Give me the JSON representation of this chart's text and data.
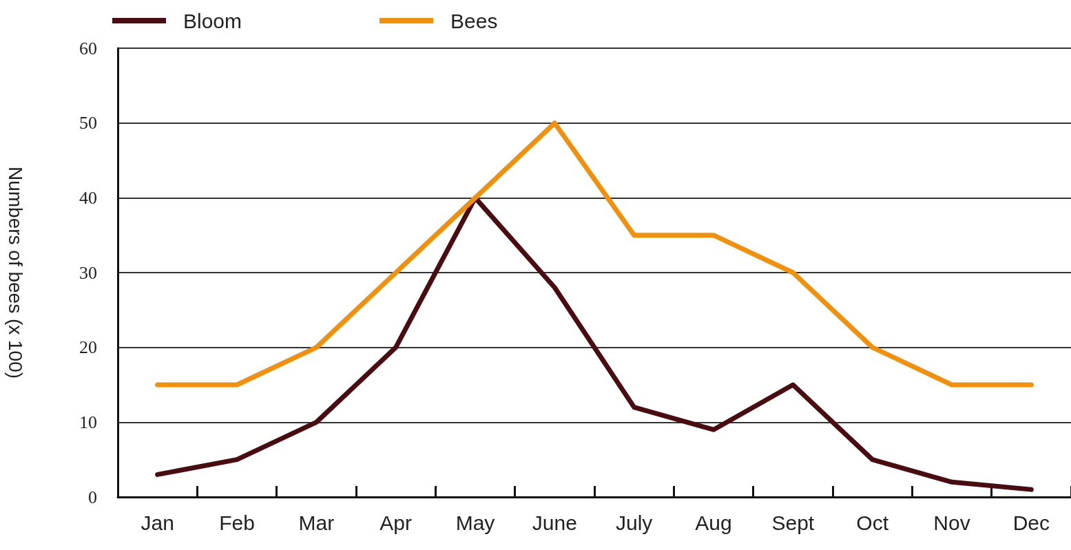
{
  "chart_data": {
    "type": "line",
    "ylabel": "Numbers of bees (x 100)",
    "categories": [
      "Jan",
      "Feb",
      "Mar",
      "Apr",
      "May",
      "June",
      "July",
      "Aug",
      "Sept",
      "Oct",
      "Nov",
      "Dec"
    ],
    "ylim": [
      0,
      60
    ],
    "yticks": [
      0,
      10,
      20,
      30,
      40,
      50,
      60
    ],
    "series": [
      {
        "name": "Bloom",
        "color": "#4a0c10",
        "values": [
          3,
          5,
          10,
          20,
          40,
          28,
          12,
          9,
          15,
          5,
          2,
          1
        ]
      },
      {
        "name": "Bees",
        "color": "#f0900c",
        "values": [
          15,
          15,
          20,
          30,
          40,
          50,
          35,
          35,
          30,
          20,
          15,
          15
        ]
      }
    ],
    "grid": "y",
    "legend": "top left",
    "marker": "none",
    "line_style": "solid"
  }
}
